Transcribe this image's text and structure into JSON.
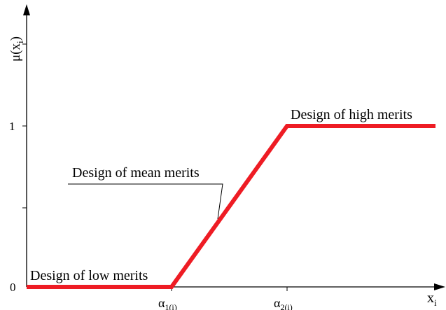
{
  "diagram": {
    "y_axis_label": {
      "base": "μ(x",
      "sub": "i",
      "close": ")"
    },
    "x_axis_label": {
      "base": "x",
      "sub": "i"
    },
    "y_ticks": [
      "0",
      "1"
    ],
    "x_ticks": [
      {
        "base": "α",
        "sub": "1(i)"
      },
      {
        "base": "α",
        "sub": "2(i)"
      }
    ],
    "annotations": {
      "low": "Design of low merits",
      "mean": "Design of mean merits",
      "high": "Design of high merits"
    },
    "colors": {
      "curve": "#ee1c24",
      "axis": "#000000"
    }
  },
  "chart_data": {
    "type": "line",
    "x": [
      "0",
      "α1(i)",
      "α2(i)",
      "xi"
    ],
    "series": [
      {
        "values": [
          0,
          0,
          1,
          1
        ]
      }
    ],
    "xlabel": "xi",
    "ylabel": "μ(xi)",
    "ylim": [
      0,
      1
    ]
  }
}
